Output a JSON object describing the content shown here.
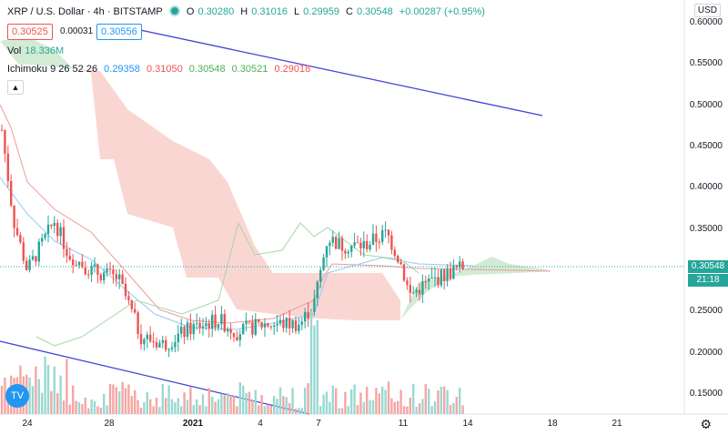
{
  "header": {
    "symbol": "XRP / U.S. Dollar · 4h · BITSTAMP",
    "o_label": "O",
    "o": "0.30280",
    "h_label": "H",
    "h": "0.31016",
    "l_label": "L",
    "l": "0.29959",
    "c_label": "C",
    "c": "0.30548",
    "change": "+0.00287 (+0.95%)"
  },
  "price_boxes": {
    "sell": "0.30525",
    "spread": "0.00031",
    "buy": "0.30556"
  },
  "volume": {
    "label": "Vol",
    "value": "18.336M"
  },
  "ichimoku": {
    "label": "Ichimoku 9 26 52 26",
    "v1": "0.29358",
    "v2": "0.31050",
    "v3": "0.30548",
    "v4": "0.30521",
    "v5": "0.29018"
  },
  "currency": "USD",
  "collapse_icon": "chevron-up-icon",
  "last_price": "0.30548",
  "countdown": "21:18",
  "colors": {
    "up": "#26a69a",
    "down": "#ef5350",
    "trend": "#3f3fd6",
    "cloud_red": "#f8c8c4",
    "cloud_green": "#c8e6c9"
  },
  "chart_data": {
    "type": "candlestick",
    "y_ticks": [
      "0.60000",
      "0.55000",
      "0.50000",
      "0.45000",
      "0.40000",
      "0.35000",
      "0.30000",
      "0.25000",
      "0.20000",
      "0.15000"
    ],
    "x_ticks": [
      "24",
      "28",
      "2021",
      "4",
      "7",
      "11",
      "14",
      "18",
      "21"
    ],
    "ylim": [
      0.125,
      0.62
    ]
  }
}
